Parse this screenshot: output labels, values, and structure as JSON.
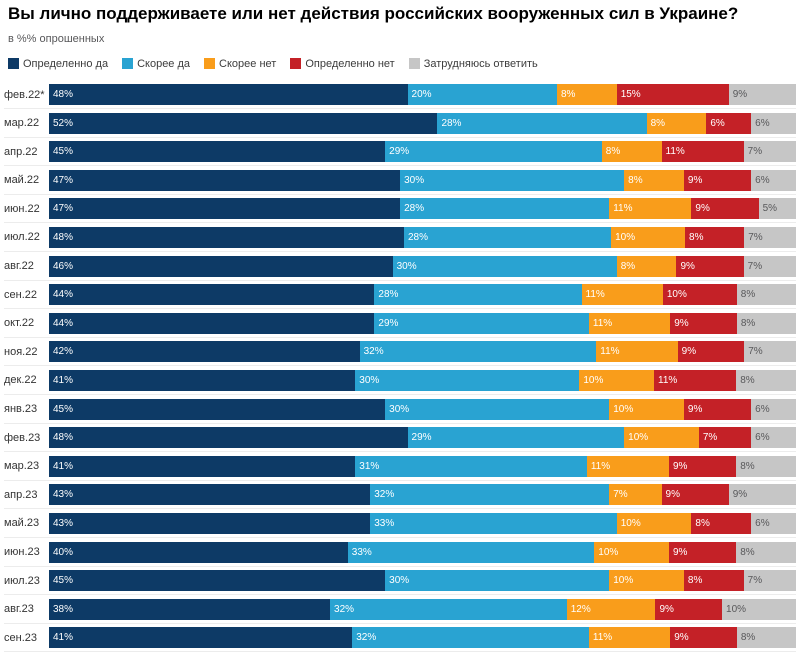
{
  "colors": {
    "definitely_yes": "#0d3a66",
    "rather_yes": "#29a3d2",
    "rather_no": "#f99d1b",
    "definitely_no": "#c42127",
    "hard_to_answer": "#c6c6c6",
    "gray_label_text": "#58585a"
  },
  "chart_data": {
    "type": "bar",
    "orientation": "horizontal_stacked",
    "title": "Вы лично поддерживаете или нет действия российских вооруженных сил в Украине?",
    "subtitle": "в %% опрошенных",
    "unit": "%",
    "legend_position": "top",
    "grid": false,
    "categories": [
      "фев.22*",
      "мар.22",
      "апр.22",
      "май.22",
      "июн.22",
      "июл.22",
      "авг.22",
      "сен.22",
      "окт.22",
      "ноя.22",
      "дек.22",
      "янв.23",
      "фев.23",
      "мар.23",
      "апр.23",
      "май.23",
      "июн.23",
      "июл.23",
      "авг.23",
      "сен.23"
    ],
    "series": [
      {
        "name": "Определенно да",
        "color": "#0d3a66",
        "label_color": "#ffffff",
        "values": [
          48,
          52,
          45,
          47,
          47,
          48,
          46,
          44,
          44,
          42,
          41,
          45,
          48,
          41,
          43,
          43,
          40,
          45,
          38,
          41
        ]
      },
      {
        "name": "Скорее да",
        "color": "#29a3d2",
        "label_color": "#ffffff",
        "values": [
          20,
          28,
          29,
          30,
          28,
          28,
          30,
          28,
          29,
          32,
          30,
          30,
          29,
          31,
          32,
          33,
          33,
          30,
          32,
          32
        ]
      },
      {
        "name": "Скорее нет",
        "color": "#f99d1b",
        "label_color": "#ffffff",
        "values": [
          8,
          8,
          8,
          8,
          11,
          10,
          8,
          11,
          11,
          11,
          10,
          10,
          10,
          11,
          7,
          10,
          10,
          10,
          12,
          11
        ]
      },
      {
        "name": "Определенно нет",
        "color": "#c42127",
        "label_color": "#ffffff",
        "values": [
          15,
          6,
          11,
          9,
          9,
          8,
          9,
          10,
          9,
          9,
          11,
          9,
          7,
          9,
          9,
          8,
          9,
          8,
          9,
          9
        ]
      },
      {
        "name": "Затрудняюсь ответить",
        "color": "#c6c6c6",
        "label_color": "#58585a",
        "values": [
          9,
          6,
          7,
          6,
          5,
          7,
          7,
          8,
          8,
          7,
          8,
          6,
          6,
          8,
          9,
          6,
          8,
          7,
          10,
          8
        ]
      }
    ]
  }
}
